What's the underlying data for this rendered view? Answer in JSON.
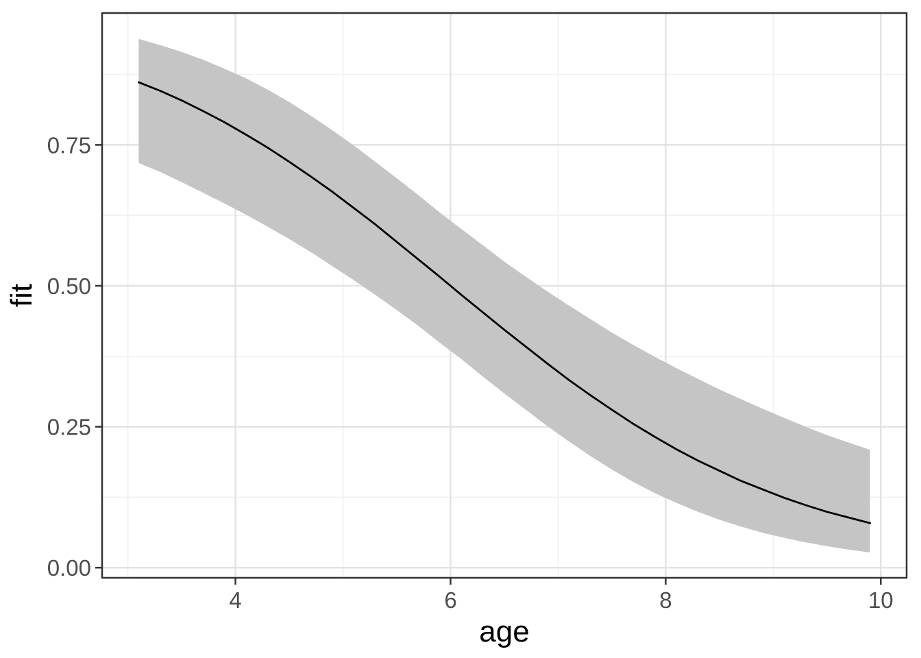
{
  "chart_data": {
    "type": "line",
    "title": "",
    "xlabel": "age",
    "ylabel": "fit",
    "xlim": [
      2.76,
      10.24
    ],
    "ylim": [
      -0.018,
      0.984
    ],
    "grid": "major+minor",
    "legend": "none",
    "x_ticks": {
      "values": [
        4,
        6,
        8,
        10
      ],
      "labels": [
        "4",
        "6",
        "8",
        "10"
      ],
      "minor": [
        3,
        5,
        7,
        9
      ]
    },
    "y_ticks": {
      "values": [
        0.0,
        0.25,
        0.5,
        0.75
      ],
      "labels": [
        "0.00",
        "0.25",
        "0.50",
        "0.75"
      ],
      "minor": [
        0.125,
        0.375,
        0.625,
        0.875
      ]
    },
    "series": [
      {
        "name": "fit",
        "x": [
          3.1,
          3.3,
          3.5,
          3.7,
          3.9,
          4.1,
          4.3,
          4.5,
          4.7,
          4.9,
          5.1,
          5.3,
          5.5,
          5.7,
          5.9,
          6.1,
          6.3,
          6.5,
          6.7,
          6.9,
          7.1,
          7.3,
          7.5,
          7.7,
          7.9,
          8.1,
          8.3,
          8.5,
          8.7,
          8.9,
          9.1,
          9.3,
          9.5,
          9.7,
          9.9
        ],
        "y": [
          0.861,
          0.846,
          0.829,
          0.81,
          0.79,
          0.768,
          0.745,
          0.72,
          0.694,
          0.667,
          0.638,
          0.609,
          0.578,
          0.547,
          0.516,
          0.484,
          0.453,
          0.422,
          0.392,
          0.362,
          0.333,
          0.306,
          0.28,
          0.255,
          0.232,
          0.21,
          0.19,
          0.172,
          0.154,
          0.139,
          0.124,
          0.111,
          0.099,
          0.089,
          0.079
        ]
      }
    ],
    "ribbon": {
      "name": "confidence-band",
      "x": [
        3.1,
        3.3,
        3.5,
        3.7,
        3.9,
        4.1,
        4.3,
        4.5,
        4.7,
        4.9,
        5.1,
        5.3,
        5.5,
        5.7,
        5.9,
        6.1,
        6.3,
        6.5,
        6.7,
        6.9,
        7.1,
        7.3,
        7.5,
        7.7,
        7.9,
        8.1,
        8.3,
        8.5,
        8.7,
        8.9,
        9.1,
        9.3,
        9.5,
        9.7,
        9.9
      ],
      "upper": [
        0.938,
        0.927,
        0.915,
        0.901,
        0.885,
        0.868,
        0.848,
        0.826,
        0.802,
        0.776,
        0.749,
        0.72,
        0.691,
        0.661,
        0.63,
        0.601,
        0.572,
        0.543,
        0.516,
        0.49,
        0.465,
        0.441,
        0.417,
        0.395,
        0.374,
        0.354,
        0.335,
        0.316,
        0.299,
        0.282,
        0.266,
        0.25,
        0.235,
        0.222,
        0.209
      ],
      "lower": [
        0.718,
        0.702,
        0.684,
        0.665,
        0.646,
        0.626,
        0.605,
        0.583,
        0.56,
        0.535,
        0.51,
        0.484,
        0.457,
        0.429,
        0.399,
        0.37,
        0.339,
        0.309,
        0.28,
        0.251,
        0.224,
        0.198,
        0.174,
        0.152,
        0.132,
        0.115,
        0.099,
        0.085,
        0.073,
        0.062,
        0.053,
        0.045,
        0.038,
        0.032,
        0.027
      ]
    }
  },
  "colors": {
    "background": "#ffffff",
    "panel_background": "#ffffff",
    "panel_border": "#333333",
    "grid_major": "#e3e3e3",
    "grid_minor": "#f0f0f0",
    "ribbon_fill": "#c5c5c5",
    "line": "#000000",
    "tick_mark": "#333333",
    "tick_text": "#4d4d4d",
    "axis_title_text": "#000000"
  }
}
